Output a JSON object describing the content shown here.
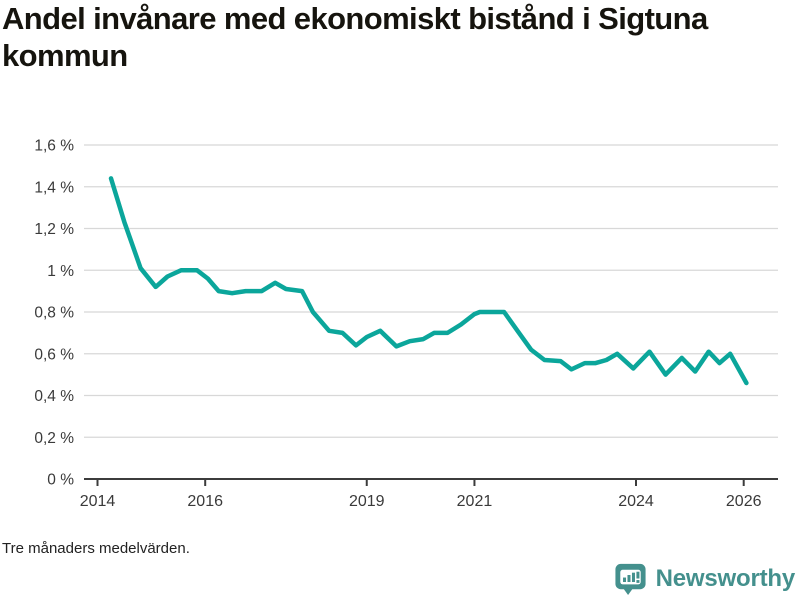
{
  "header": {
    "title": "Andel invånare med ekonomiskt bistånd i Sigtuna kommun"
  },
  "footnote": {
    "text": "Tre månaders medelvärden."
  },
  "branding": {
    "wordmark": "Newsworthy",
    "icon": "bar-chart-speech-bubble-icon"
  },
  "colors": {
    "line": "#0ba69b",
    "grid": "#d8d8d8",
    "axis": "#3c3c3c",
    "tick_text": "#3a3a3a",
    "title_text": "#16140e",
    "footnote_text": "#222222",
    "brand_teal": "#44908d",
    "background": "#ffffff"
  },
  "chart_data": {
    "type": "line",
    "title": "Andel invånare med ekonomiskt bistånd i Sigtuna kommun",
    "note": "Tre månaders medelvärden.",
    "unit": "percent of inhabitants",
    "xlabel": "",
    "ylabel": "",
    "ylim": [
      0,
      1.6
    ],
    "xlim": [
      2013.75,
      2026.65
    ],
    "grid": "horizontal-only",
    "legend": "none",
    "y_ticks": [
      {
        "value": 0,
        "label": "0 %"
      },
      {
        "value": 0.2,
        "label": "0,2 %"
      },
      {
        "value": 0.4,
        "label": "0,4 %"
      },
      {
        "value": 0.6,
        "label": "0,6 %"
      },
      {
        "value": 0.8,
        "label": "0,8 %"
      },
      {
        "value": 1,
        "label": "1 %"
      },
      {
        "value": 1.2,
        "label": "1,2 %"
      },
      {
        "value": 1.4,
        "label": "1,4 %"
      },
      {
        "value": 1.6,
        "label": "1,6 %"
      }
    ],
    "x_ticks": [
      {
        "value": 2014,
        "label": "2014"
      },
      {
        "value": 2016,
        "label": "2016"
      },
      {
        "value": 2019,
        "label": "2019"
      },
      {
        "value": 2021,
        "label": "2021"
      },
      {
        "value": 2024,
        "label": "2024"
      },
      {
        "value": 2026,
        "label": "2026"
      }
    ],
    "series": [
      {
        "name": "Andel invånare med ekonomiskt bistånd (tre månaders medelvärden)",
        "color": "#0ba69b",
        "points": [
          [
            2014.25,
            1.44
          ],
          [
            2014.5,
            1.23
          ],
          [
            2014.8,
            1.01
          ],
          [
            2015.08,
            0.92
          ],
          [
            2015.3,
            0.97
          ],
          [
            2015.55,
            1.0
          ],
          [
            2015.85,
            1.0
          ],
          [
            2016.05,
            0.96
          ],
          [
            2016.25,
            0.9
          ],
          [
            2016.5,
            0.89
          ],
          [
            2016.75,
            0.9
          ],
          [
            2017.05,
            0.9
          ],
          [
            2017.3,
            0.94
          ],
          [
            2017.5,
            0.91
          ],
          [
            2017.8,
            0.9
          ],
          [
            2018.0,
            0.8
          ],
          [
            2018.3,
            0.71
          ],
          [
            2018.55,
            0.7
          ],
          [
            2018.8,
            0.64
          ],
          [
            2019.0,
            0.68
          ],
          [
            2019.25,
            0.71
          ],
          [
            2019.55,
            0.635
          ],
          [
            2019.8,
            0.66
          ],
          [
            2020.05,
            0.67
          ],
          [
            2020.25,
            0.7
          ],
          [
            2020.5,
            0.7
          ],
          [
            2020.75,
            0.74
          ],
          [
            2021.0,
            0.79
          ],
          [
            2021.1,
            0.8
          ],
          [
            2021.55,
            0.8
          ],
          [
            2021.8,
            0.71
          ],
          [
            2022.05,
            0.62
          ],
          [
            2022.3,
            0.57
          ],
          [
            2022.6,
            0.565
          ],
          [
            2022.8,
            0.525
          ],
          [
            2023.05,
            0.555
          ],
          [
            2023.25,
            0.555
          ],
          [
            2023.45,
            0.57
          ],
          [
            2023.65,
            0.6
          ],
          [
            2023.95,
            0.53
          ],
          [
            2024.25,
            0.61
          ],
          [
            2024.55,
            0.5
          ],
          [
            2024.85,
            0.58
          ],
          [
            2025.1,
            0.515
          ],
          [
            2025.35,
            0.61
          ],
          [
            2025.55,
            0.555
          ],
          [
            2025.75,
            0.6
          ],
          [
            2026.05,
            0.46
          ]
        ]
      }
    ]
  }
}
